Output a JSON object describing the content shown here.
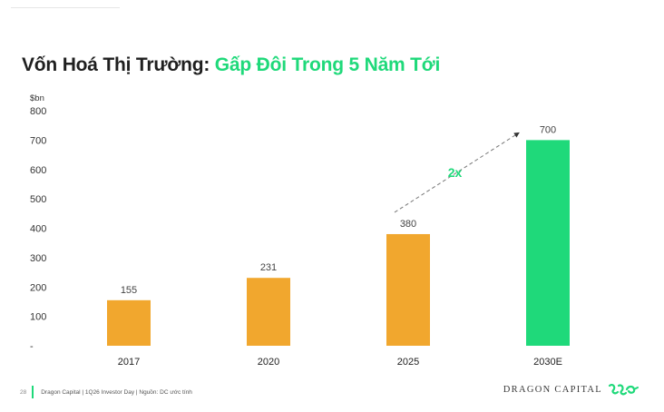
{
  "title": {
    "part1": "Vốn Hoá Thị Trường: ",
    "part2": "Gấp Đôi Trong 5 Năm Tới"
  },
  "chart_data": {
    "type": "bar",
    "ylabel": "$bn",
    "ylim": [
      0,
      800
    ],
    "yticks": [
      {
        "value": 800,
        "label": "800"
      },
      {
        "value": 700,
        "label": "700"
      },
      {
        "value": 600,
        "label": "600"
      },
      {
        "value": 500,
        "label": "500"
      },
      {
        "value": 400,
        "label": "400"
      },
      {
        "value": 300,
        "label": "300"
      },
      {
        "value": 200,
        "label": "200"
      },
      {
        "value": 100,
        "label": "100"
      },
      {
        "value": 0,
        "label": "-"
      }
    ],
    "categories": [
      "2017",
      "2020",
      "2025",
      "2030E"
    ],
    "values": [
      155,
      231,
      380,
      700
    ],
    "data_labels": [
      "155",
      "231",
      "380",
      "700"
    ],
    "bar_colors": [
      "#f1a72e",
      "#f1a72e",
      "#f1a72e",
      "#1fd97a"
    ],
    "annotation": {
      "text": "2x",
      "from_category": "2025",
      "to_category": "2030E",
      "color": "#1fd97a"
    },
    "grid": false
  },
  "footer": {
    "page_number": "28",
    "text": "Dragon Capital | 1Q26 Investor Day | Nguồn: DC ước tính",
    "brand": "DRAGON CAPITAL",
    "accent_color": "#1fd97a"
  }
}
